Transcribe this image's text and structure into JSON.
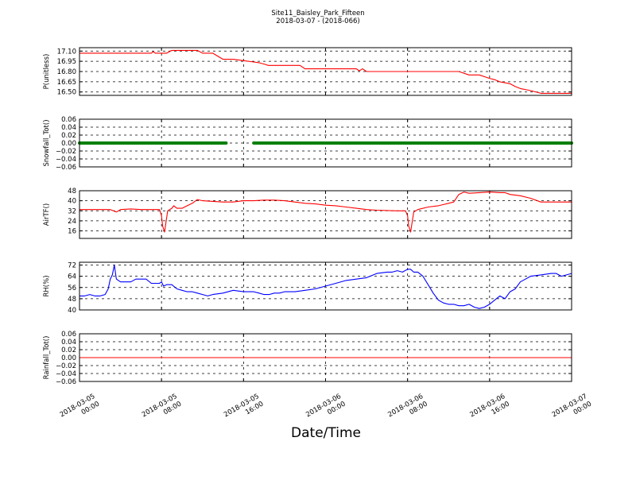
{
  "figure": {
    "title": "Site11_Baisley_Park_Fifteen",
    "subtitle": "2018-03-07 - (2018-066)",
    "xlabel": "Date/Time"
  },
  "chart_data": [
    {
      "type": "line",
      "ylabel": "P(unitless)",
      "color": "#ff0000",
      "x_ticks": [
        "2018-03-05\n00:00",
        "2018-03-05\n08:00",
        "2018-03-05\n16:00",
        "2018-03-06\n00:00",
        "2018-03-06\n08:00",
        "2018-03-06\n16:00",
        "2018-03-07\n00:00"
      ],
      "xlim": [
        0,
        48
      ],
      "ylim": [
        16.45,
        17.15
      ],
      "y_ticks": [
        "17.10",
        "16.95",
        "16.80",
        "16.65",
        "16.50"
      ],
      "y_tick_values": [
        17.1,
        16.95,
        16.8,
        16.65,
        16.5
      ],
      "grid": true,
      "series": [
        {
          "x": [
            0,
            2,
            4,
            6,
            7,
            7.2,
            7.4,
            8,
            8.5,
            9,
            10,
            11,
            11.5,
            12,
            12.5,
            13,
            14,
            15,
            16,
            17,
            17.5,
            18,
            18.2,
            18.4,
            19,
            20,
            21,
            21.5,
            22,
            23,
            24,
            25,
            26,
            27,
            27.3,
            27.6,
            28,
            29,
            30,
            31,
            32,
            33,
            34,
            34.5,
            35,
            36,
            37,
            38,
            39,
            40,
            40.5,
            41,
            42,
            42.5,
            43,
            44,
            45,
            46,
            47,
            48
          ],
          "y": [
            17.07,
            17.07,
            17.07,
            17.07,
            17.07,
            17.09,
            17.07,
            17.07,
            17.07,
            17.11,
            17.11,
            17.11,
            17.11,
            17.07,
            17.07,
            17.07,
            16.98,
            16.98,
            16.96,
            16.94,
            16.93,
            16.91,
            16.9,
            16.89,
            16.89,
            16.89,
            16.89,
            16.89,
            16.84,
            16.84,
            16.84,
            16.84,
            16.84,
            16.84,
            16.81,
            16.84,
            16.8,
            16.8,
            16.8,
            16.8,
            16.8,
            16.8,
            16.8,
            16.8,
            16.8,
            16.8,
            16.8,
            16.75,
            16.75,
            16.7,
            16.68,
            16.65,
            16.62,
            16.58,
            16.55,
            16.52,
            16.48,
            16.48,
            16.48,
            16.48
          ]
        }
      ]
    },
    {
      "type": "scatter",
      "ylabel": "Snowfall_Tot()",
      "color": "#008000",
      "xlim": [
        0,
        48
      ],
      "ylim": [
        -0.06,
        0.06
      ],
      "y_ticks": [
        "0.06",
        "0.04",
        "0.02",
        "0.00",
        "−0.02",
        "−0.04",
        "−0.06"
      ],
      "y_tick_values": [
        0.06,
        0.04,
        0.02,
        0.0,
        -0.02,
        -0.04,
        -0.06
      ],
      "grid": true,
      "segments": [
        [
          0,
          14.3
        ],
        [
          17,
          48
        ]
      ],
      "value": 0.0
    },
    {
      "type": "line",
      "ylabel": "AirTF()",
      "color": "#ff0000",
      "xlim": [
        0,
        48
      ],
      "ylim": [
        10,
        48
      ],
      "y_ticks": [
        "48",
        "40",
        "32",
        "24",
        "16"
      ],
      "y_tick_values": [
        48,
        40,
        32,
        24,
        16
      ],
      "grid": true,
      "series": [
        {
          "x": [
            0,
            1,
            2,
            3,
            3.3,
            3.6,
            4,
            5,
            6,
            7,
            7.8,
            8,
            8.1,
            8.3,
            8.6,
            9,
            9.2,
            9.5,
            10,
            10.5,
            11,
            11.5,
            12,
            13,
            14,
            15,
            16,
            17,
            18,
            19,
            20,
            21,
            22,
            23,
            24,
            25,
            26,
            27,
            28,
            29,
            31,
            31.8,
            32,
            32.1,
            32.3,
            32.6,
            33,
            34,
            35,
            35.5,
            36,
            36.5,
            37,
            37.5,
            38,
            39,
            40,
            41,
            41.5,
            42,
            43,
            44,
            45,
            46,
            47,
            48
          ],
          "y": [
            33,
            33,
            33,
            33,
            32,
            31,
            33,
            33.5,
            33,
            33,
            33,
            28,
            20,
            15,
            32,
            34,
            36,
            34,
            34,
            36,
            38,
            41,
            40,
            39.5,
            39,
            39,
            40,
            40,
            40.5,
            40.5,
            40,
            39,
            38,
            37.5,
            36.5,
            36,
            35,
            34,
            33,
            32.5,
            32,
            32,
            28,
            20,
            15,
            31,
            33,
            35,
            36,
            37,
            38,
            39,
            45,
            47,
            46,
            46.5,
            47,
            46.5,
            46.5,
            45,
            44,
            42,
            39,
            39,
            39,
            39
          ]
        }
      ]
    },
    {
      "type": "line",
      "ylabel": "RH(%)",
      "color": "#0000ff",
      "xlim": [
        0,
        48
      ],
      "ylim": [
        40,
        74
      ],
      "y_ticks": [
        "72",
        "64",
        "56",
        "48",
        "40"
      ],
      "y_tick_values": [
        72,
        64,
        56,
        48,
        40
      ],
      "grid": true,
      "series": [
        {
          "x": [
            0,
            0.5,
            1,
            1.5,
            2,
            2.5,
            2.8,
            3,
            3.2,
            3.4,
            3.6,
            4,
            4.5,
            5,
            5.5,
            6,
            6.5,
            7,
            7.5,
            7.8,
            8,
            8.2,
            8.5,
            9,
            9.5,
            10,
            10.5,
            11,
            11.5,
            12,
            12.5,
            13,
            14,
            15,
            16,
            17,
            17.5,
            18,
            18.5,
            19,
            19.5,
            20,
            21,
            22,
            23,
            24,
            25,
            26,
            27,
            28,
            29,
            30,
            30.5,
            31,
            31.5,
            32,
            32.3,
            32.6,
            33,
            33.5,
            34,
            34.5,
            35,
            35.5,
            36,
            36.5,
            37,
            37.5,
            38,
            38.5,
            39,
            39.5,
            40,
            40.5,
            41,
            41.5,
            42,
            42.5,
            43,
            43.5,
            44,
            45,
            46,
            46.5,
            47,
            48
          ],
          "y": [
            50,
            50,
            51,
            50,
            50,
            51,
            55,
            62,
            65,
            72,
            62,
            60,
            60,
            60,
            62,
            62,
            62,
            59,
            59,
            59,
            60,
            57,
            58,
            58,
            55,
            54,
            53,
            53,
            52,
            51,
            50,
            51,
            52,
            54,
            53,
            53,
            52,
            51,
            51,
            52,
            52,
            53,
            53,
            54,
            55,
            57,
            59,
            61,
            62,
            63,
            66,
            67,
            67,
            68,
            67,
            69,
            69,
            67,
            67,
            64,
            58,
            52,
            47,
            45,
            44,
            44,
            43,
            43,
            44,
            42,
            41,
            42,
            44,
            47,
            50,
            48,
            53,
            55,
            60,
            62,
            64,
            65,
            66,
            66,
            64,
            66
          ]
        }
      ]
    },
    {
      "type": "line",
      "ylabel": "Rainfall_Tot()",
      "color": "#ff0000",
      "xlim": [
        0,
        48
      ],
      "ylim": [
        -0.06,
        0.06
      ],
      "y_ticks": [
        "0.06",
        "0.04",
        "0.02",
        "0.00",
        "−0.02",
        "−0.04",
        "−0.06"
      ],
      "y_tick_values": [
        0.06,
        0.04,
        0.02,
        0.0,
        -0.02,
        -0.04,
        -0.06
      ],
      "grid": true,
      "series": [
        {
          "x": [
            0,
            48
          ],
          "y": [
            0,
            0
          ]
        }
      ]
    }
  ]
}
